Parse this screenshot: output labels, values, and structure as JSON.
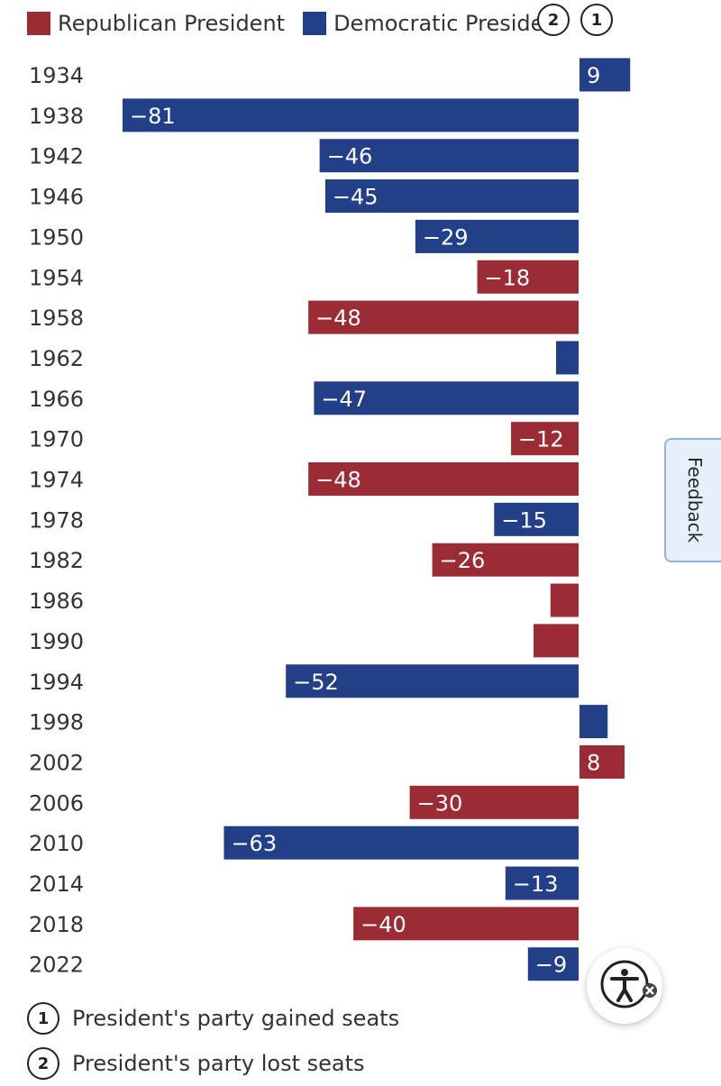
{
  "legend": {
    "items": [
      {
        "label": "Republican President",
        "color": "#9b2c35"
      },
      {
        "label": "Democratic President",
        "color": "#223f87"
      }
    ],
    "markers": [
      "2",
      "1"
    ]
  },
  "chart_data": {
    "type": "bar",
    "orientation": "horizontal",
    "title": "",
    "xlabel": "",
    "ylabel": "",
    "xlim": [
      -81,
      9
    ],
    "categories": [
      "1934",
      "1938",
      "1942",
      "1946",
      "1950",
      "1954",
      "1958",
      "1962",
      "1966",
      "1970",
      "1974",
      "1978",
      "1982",
      "1986",
      "1990",
      "1994",
      "1998",
      "2002",
      "2006",
      "2010",
      "2014",
      "2018",
      "2022"
    ],
    "values": [
      9,
      -81,
      -46,
      -45,
      -29,
      -18,
      -48,
      -4,
      -47,
      -12,
      -48,
      -15,
      -26,
      -5,
      -8,
      -52,
      5,
      8,
      -30,
      -63,
      -13,
      -40,
      -9
    ],
    "party": [
      "D",
      "D",
      "D",
      "D",
      "D",
      "R",
      "R",
      "D",
      "D",
      "R",
      "R",
      "D",
      "R",
      "R",
      "R",
      "D",
      "D",
      "R",
      "R",
      "D",
      "D",
      "R",
      "D"
    ],
    "labels": [
      "9",
      "−81",
      "−46",
      "−45",
      "−29",
      "−18",
      "−48",
      "",
      "−47",
      "−12",
      "−48",
      "−15",
      "−26",
      "",
      "",
      "−52",
      "",
      "8",
      "−30",
      "−63",
      "−13",
      "−40",
      "−9"
    ],
    "colors": {
      "R": "#9b2c35",
      "D": "#223f87"
    }
  },
  "notes": [
    {
      "number": "1",
      "text": "President's party gained seats"
    },
    {
      "number": "2",
      "text": "President's party lost seats"
    }
  ],
  "feedback": {
    "label": "Feedback"
  },
  "accessibility": {
    "icon": "accessibility-icon"
  }
}
